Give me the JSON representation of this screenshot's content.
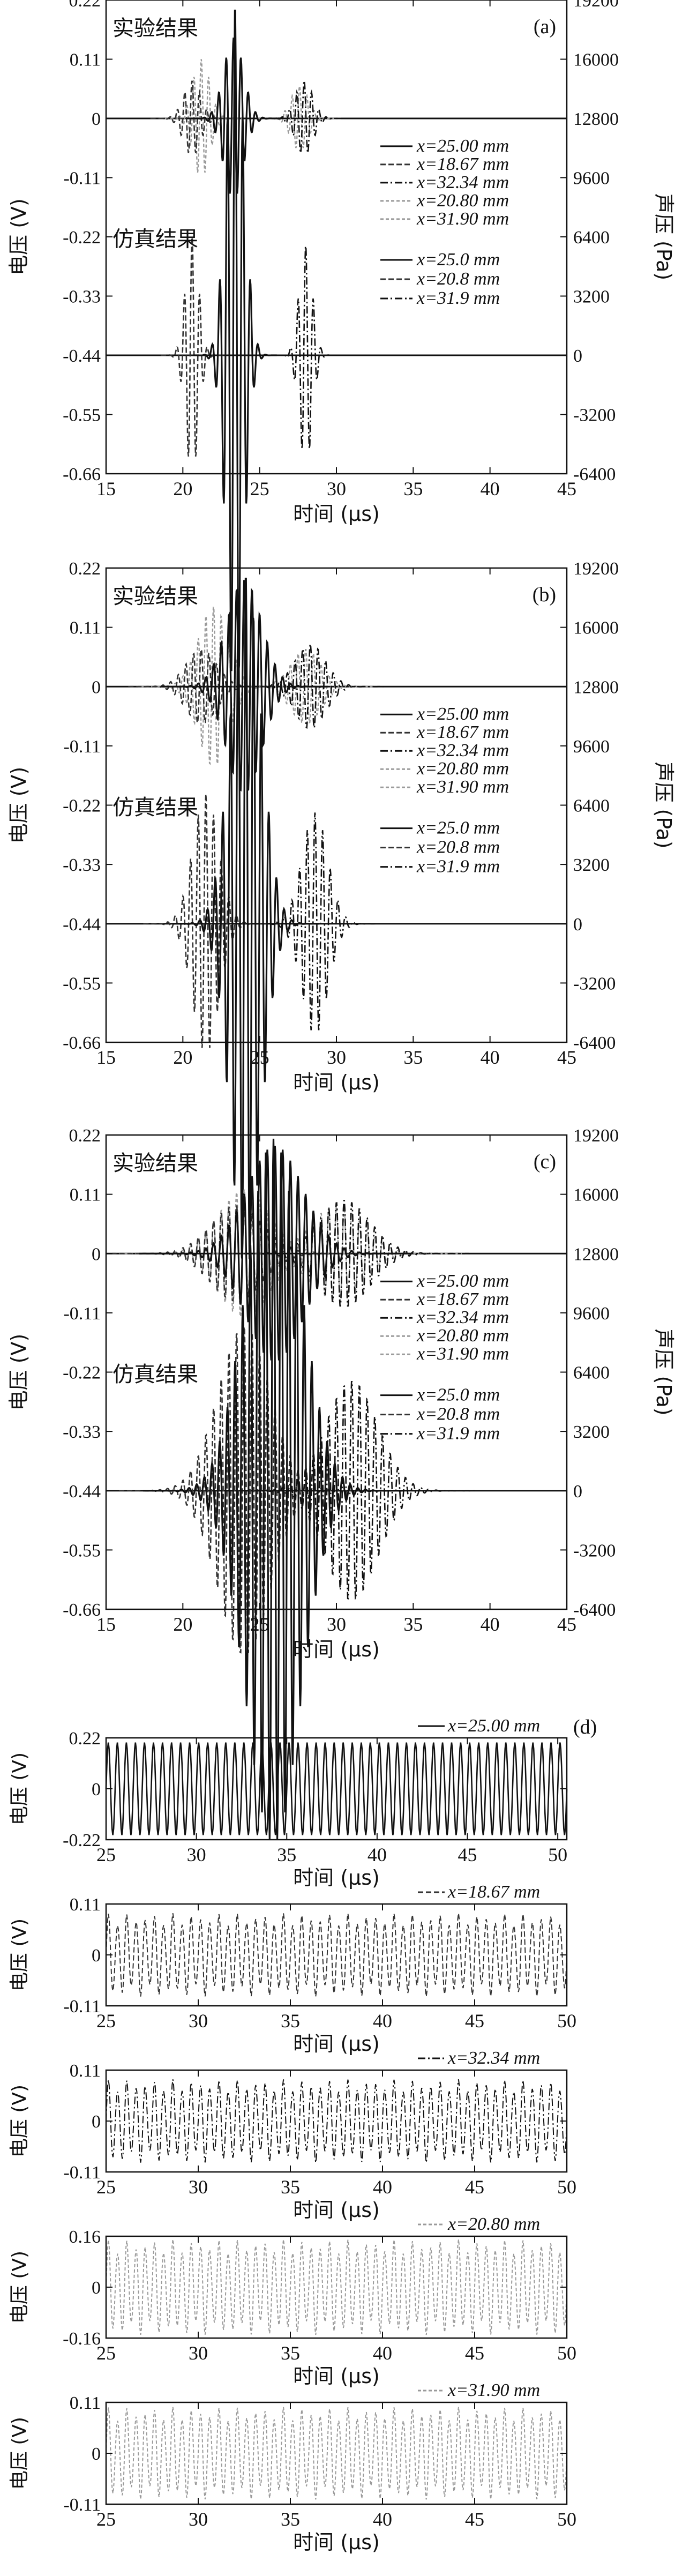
{
  "colors": {
    "axis": "#111111",
    "solid": "#111111",
    "dashed": "#333333",
    "dotted": "#9a9a9a",
    "background": "#ffffff"
  },
  "chart_data": [
    {
      "id": "a",
      "type": "line",
      "panel_label": "(a)",
      "xlabel": "时间 (μs)",
      "ylabel": "电压 (V)",
      "y2label": "声压 (Pa)",
      "xlim": [
        15,
        45
      ],
      "ylim": [
        -0.66,
        0.22
      ],
      "y2lim": [
        -6400,
        19200
      ],
      "xticks": [
        "15",
        "20",
        "25",
        "30",
        "35",
        "40",
        "45"
      ],
      "yticks": [
        "0.22",
        "0.11",
        "0",
        "-0.11",
        "-0.22",
        "-0.33",
        "-0.44",
        "-0.55",
        "-0.66"
      ],
      "y2ticks": [
        "19200",
        "16000",
        "12800",
        "9600",
        "6400",
        "3200",
        "0",
        "-3200",
        "-6400"
      ],
      "annotations": [
        "实验结果",
        "仿真结果"
      ],
      "legend_experiment": {
        "placement": "middle-right",
        "entries": [
          "x=25.00 mm",
          "x=18.67 mm",
          "x=32.34 mm",
          "x=20.80 mm",
          "x=31.90 mm"
        ]
      },
      "legend_simulation": {
        "placement": "lower-right",
        "entries": [
          "x=25.0 mm",
          "x=20.8 mm",
          "x=31.9 mm"
        ]
      },
      "series": [
        {
          "name": "x=25.00 mm",
          "group": "experiment",
          "style": "solid",
          "center": 23.3,
          "width": 0.9,
          "amplitude": 0.15,
          "period": 0.48
        },
        {
          "name": "x=18.67 mm",
          "group": "experiment",
          "style": "dashed",
          "center": 20.6,
          "width": 0.8,
          "amplitude": 0.07,
          "period": 0.48
        },
        {
          "name": "x=32.34 mm",
          "group": "experiment",
          "style": "dashdot",
          "center": 27.9,
          "width": 0.8,
          "amplitude": 0.07,
          "period": 0.48
        },
        {
          "name": "x=20.80 mm",
          "group": "experiment",
          "style": "dotted",
          "center": 21.2,
          "width": 0.8,
          "amplitude": 0.11,
          "period": 0.48
        },
        {
          "name": "x=31.90 mm",
          "group": "experiment",
          "style": "dotted",
          "center": 27.6,
          "width": 0.8,
          "amplitude": 0.06,
          "period": 0.48
        },
        {
          "name": "x=25.0 mm",
          "group": "simulation",
          "style": "solid",
          "center": 23.4,
          "width": 0.8,
          "amplitude": 19000,
          "period": 0.5
        },
        {
          "name": "x=20.8 mm",
          "group": "simulation",
          "style": "dashed",
          "center": 20.6,
          "width": 0.6,
          "amplitude": 6500,
          "period": 0.5
        },
        {
          "name": "x=31.9 mm",
          "group": "simulation",
          "style": "dashdot",
          "center": 28.0,
          "width": 0.6,
          "amplitude": 6000,
          "period": 0.5
        }
      ]
    },
    {
      "id": "b",
      "type": "line",
      "panel_label": "(b)",
      "xlabel": "时间 (μs)",
      "ylabel": "电压 (V)",
      "y2label": "声压 (Pa)",
      "xlim": [
        15,
        45
      ],
      "ylim": [
        -0.66,
        0.22
      ],
      "y2lim": [
        -6400,
        19200
      ],
      "xticks": [
        "15",
        "20",
        "25",
        "30",
        "35",
        "40",
        "45"
      ],
      "yticks": [
        "0.22",
        "0.11",
        "0",
        "-0.11",
        "-0.22",
        "-0.33",
        "-0.44",
        "-0.55",
        "-0.66"
      ],
      "y2ticks": [
        "19200",
        "16000",
        "12800",
        "9600",
        "6400",
        "3200",
        "0",
        "-3200",
        "-6400"
      ],
      "annotations": [
        "实验结果",
        "仿真结果"
      ],
      "legend_experiment": {
        "placement": "middle-right",
        "entries": [
          "x=25.00 mm",
          "x=18.67 mm",
          "x=32.34 mm",
          "x=20.80 mm",
          "x=31.90 mm"
        ]
      },
      "legend_simulation": {
        "placement": "lower-right",
        "entries": [
          "x=25.0 mm",
          "x=20.8 mm",
          "x=31.9 mm"
        ]
      },
      "series": [
        {
          "name": "x=25.00 mm",
          "group": "experiment",
          "style": "solid",
          "center": 24.0,
          "width": 1.6,
          "amplitude": 0.2,
          "period": 0.5
        },
        {
          "name": "x=18.67 mm",
          "group": "experiment",
          "style": "dashed",
          "center": 21.2,
          "width": 1.4,
          "amplitude": 0.07,
          "period": 0.5
        },
        {
          "name": "x=32.34 mm",
          "group": "experiment",
          "style": "dashdot",
          "center": 28.3,
          "width": 1.4,
          "amplitude": 0.08,
          "period": 0.5
        },
        {
          "name": "x=20.80 mm",
          "group": "experiment",
          "style": "dotted",
          "center": 22.0,
          "width": 1.4,
          "amplitude": 0.15,
          "period": 0.5
        },
        {
          "name": "x=31.90 mm",
          "group": "experiment",
          "style": "dotted",
          "center": 28.0,
          "width": 1.4,
          "amplitude": 0.07,
          "period": 0.5
        },
        {
          "name": "x=25.0 mm",
          "group": "simulation",
          "style": "solid",
          "center": 24.1,
          "width": 1.4,
          "amplitude": 19000,
          "period": 0.5
        },
        {
          "name": "x=20.8 mm",
          "group": "simulation",
          "style": "dashed",
          "center": 21.5,
          "width": 1.2,
          "amplitude": 7000,
          "period": 0.5
        },
        {
          "name": "x=31.9 mm",
          "group": "simulation",
          "style": "dashdot",
          "center": 28.6,
          "width": 1.2,
          "amplitude": 6000,
          "period": 0.5
        }
      ]
    },
    {
      "id": "c",
      "type": "line",
      "panel_label": "(c)",
      "xlabel": "时间 (μs)",
      "ylabel": "电压 (V)",
      "y2label": "声压 (Pa)",
      "xlim": [
        15,
        45
      ],
      "ylim": [
        -0.66,
        0.22
      ],
      "y2lim": [
        -6400,
        19200
      ],
      "xticks": [
        "15",
        "20",
        "25",
        "30",
        "35",
        "40",
        "45"
      ],
      "yticks": [
        "0.22",
        "0.11",
        "0",
        "-0.11",
        "-0.22",
        "-0.33",
        "-0.44",
        "-0.55",
        "-0.66"
      ],
      "y2ticks": [
        "19200",
        "16000",
        "12800",
        "9600",
        "6400",
        "3200",
        "0",
        "-3200",
        "-6400"
      ],
      "annotations": [
        "实验结果",
        "仿真结果"
      ],
      "legend_experiment": {
        "placement": "middle-right",
        "entries": [
          "x=25.00 mm",
          "x=18.67 mm",
          "x=32.34 mm",
          "x=20.80 mm",
          "x=31.90 mm"
        ]
      },
      "legend_simulation": {
        "placement": "lower-right",
        "entries": [
          "x=25.0 mm",
          "x=20.8 mm",
          "x=31.9 mm"
        ]
      },
      "series": [
        {
          "name": "x=25.00 mm",
          "group": "experiment",
          "style": "solid",
          "center": 26.0,
          "width": 2.6,
          "amplitude": 0.2,
          "period": 0.5
        },
        {
          "name": "x=18.67 mm",
          "group": "experiment",
          "style": "dashed",
          "center": 23.5,
          "width": 2.4,
          "amplitude": 0.09,
          "period": 0.5
        },
        {
          "name": "x=32.34 mm",
          "group": "experiment",
          "style": "dashdot",
          "center": 30.5,
          "width": 2.4,
          "amplitude": 0.1,
          "period": 0.5
        },
        {
          "name": "x=20.80 mm",
          "group": "experiment",
          "style": "dotted",
          "center": 24.0,
          "width": 2.4,
          "amplitude": 0.12,
          "period": 0.5
        },
        {
          "name": "x=31.90 mm",
          "group": "experiment",
          "style": "dotted",
          "center": 30.0,
          "width": 2.4,
          "amplitude": 0.09,
          "period": 0.5
        },
        {
          "name": "x=25.0 mm",
          "group": "simulation",
          "style": "solid",
          "center": 25.9,
          "width": 2.5,
          "amplitude": 19000,
          "period": 0.5
        },
        {
          "name": "x=20.8 mm",
          "group": "simulation",
          "style": "dashed",
          "center": 24.0,
          "width": 2.4,
          "amplitude": 9000,
          "period": 0.5
        },
        {
          "name": "x=31.9 mm",
          "group": "simulation",
          "style": "dashdot",
          "center": 31.0,
          "width": 2.4,
          "amplitude": 6000,
          "period": 0.5
        }
      ]
    },
    {
      "id": "d1",
      "type": "line",
      "panel_label": "(d)",
      "xlabel": "时间 (μs)",
      "ylabel": "电压 (V)",
      "xlim": [
        25,
        50.5
      ],
      "ylim": [
        -0.22,
        0.22
      ],
      "xticks": [
        "25",
        "30",
        "35",
        "40",
        "45",
        "50"
      ],
      "yticks": [
        "0.22",
        "0",
        "-0.22"
      ],
      "legend": "x=25.00 mm",
      "series": [
        {
          "name": "x=25.00 mm",
          "style": "solid",
          "amplitude": 0.2,
          "period": 0.5
        }
      ]
    },
    {
      "id": "d2",
      "type": "line",
      "xlabel": "时间 (μs)",
      "ylabel": "电压 (V)",
      "xlim": [
        25,
        50
      ],
      "ylim": [
        -0.11,
        0.11
      ],
      "xticks": [
        "25",
        "30",
        "35",
        "40",
        "45",
        "50"
      ],
      "yticks": [
        "0.11",
        "0",
        "-0.11"
      ],
      "legend": "x=18.67 mm",
      "series": [
        {
          "name": "x=18.67 mm",
          "style": "dashed",
          "amplitude": 0.09,
          "period": 0.5
        }
      ]
    },
    {
      "id": "d3",
      "type": "line",
      "xlabel": "时间 (μs)",
      "ylabel": "电压 (V)",
      "xlim": [
        25,
        50
      ],
      "ylim": [
        -0.11,
        0.11
      ],
      "xticks": [
        "25",
        "30",
        "35",
        "40",
        "45",
        "50"
      ],
      "yticks": [
        "0.11",
        "0",
        "-0.11"
      ],
      "legend": "x=32.34 mm",
      "series": [
        {
          "name": "x=32.34 mm",
          "style": "dashdot",
          "amplitude": 0.09,
          "period": 0.5
        }
      ]
    },
    {
      "id": "d4",
      "type": "line",
      "xlabel": "时间 (μs)",
      "ylabel": "电压 (V)",
      "xlim": [
        25,
        50
      ],
      "ylim": [
        -0.16,
        0.16
      ],
      "xticks": [
        "25",
        "30",
        "35",
        "40",
        "45",
        "50"
      ],
      "yticks": [
        "0.16",
        "0",
        "-0.16"
      ],
      "legend": "x=20.80 mm",
      "series": [
        {
          "name": "x=20.80 mm",
          "style": "dotted",
          "amplitude": 0.15,
          "period": 0.5
        }
      ]
    },
    {
      "id": "d5",
      "type": "line",
      "xlabel": "时间 (μs)",
      "ylabel": "电压 (V)",
      "xlim": [
        25,
        50
      ],
      "ylim": [
        -0.11,
        0.11
      ],
      "xticks": [
        "25",
        "30",
        "35",
        "40",
        "45",
        "50"
      ],
      "yticks": [
        "0.11",
        "0",
        "-0.11"
      ],
      "legend": "x=31.90 mm",
      "series": [
        {
          "name": "x=31.90 mm",
          "style": "dotted",
          "amplitude": 0.1,
          "period": 0.5
        }
      ]
    }
  ]
}
